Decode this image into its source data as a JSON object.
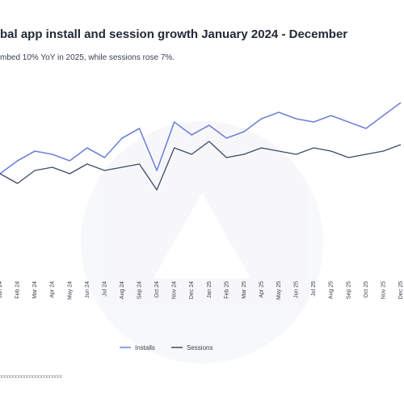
{
  "header": {
    "title": "bal app install and session growth January 2024 - December",
    "subtitle": "mbed 10% YoY in 2025, while sessions rose 7%."
  },
  "footer": {
    "source": "xxxxxxxxxxxxxxxxxxxxxx"
  },
  "watermark": {
    "icon": "brand-logo-icon"
  },
  "colors": {
    "installs": "#6f82d8",
    "sessions": "#3d4a66"
  },
  "chart_data": {
    "type": "line",
    "title": "bal app install and session growth January 2024 - December",
    "subtitle": "mbed 10% YoY in 2025, while sessions rose 7%.",
    "x": [
      "Jan 24",
      "Feb 24",
      "Mar 24",
      "Apr 24",
      "May 24",
      "Jun 24",
      "Jul 24",
      "Aug 24",
      "Sep 24",
      "Oct 24",
      "Nov 24",
      "Dec 24",
      "Jan 25",
      "Feb 25",
      "Mar 25",
      "Apr 25",
      "May 25",
      "Jun 25",
      "Jul 25",
      "Aug 25",
      "Sep 25",
      "Oct 25",
      "Nov 25",
      "Dec 25"
    ],
    "series": [
      {
        "name": "Installs",
        "values": [
          100,
          104,
          107,
          106,
          104,
          108,
          105,
          111,
          114,
          101,
          116,
          112,
          115,
          111,
          113,
          117,
          119,
          117,
          116,
          118,
          116,
          114,
          118,
          122
        ]
      },
      {
        "name": "Sessions",
        "values": [
          100,
          97,
          101,
          102,
          100,
          103,
          101,
          102,
          103,
          95,
          108,
          106,
          110,
          105,
          106,
          108,
          107,
          106,
          108,
          107,
          105,
          106,
          107,
          109
        ]
      }
    ],
    "ylim": [
      70,
      130
    ],
    "grid": false,
    "legend": "bottom-center"
  }
}
